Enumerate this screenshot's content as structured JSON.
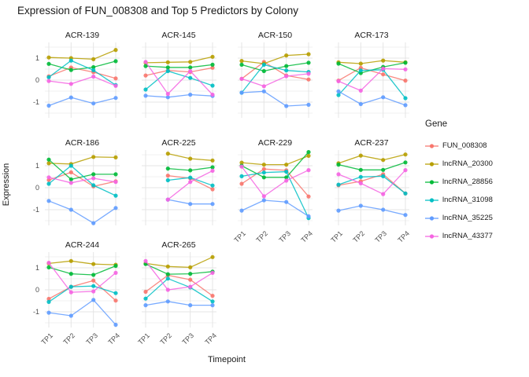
{
  "title": "Expression of FUN_008308 and Top 5 Predictors by Colony",
  "x_axis": {
    "title": "Timepoint",
    "ticks": [
      "TP1",
      "TP2",
      "TP3",
      "TP4"
    ]
  },
  "y_axis": {
    "title": "Expression",
    "ticks": [
      "1",
      "0",
      "-1"
    ],
    "tick_values": [
      1,
      0,
      -1
    ]
  },
  "legend": {
    "title": "Gene",
    "position": "right"
  },
  "colors": {
    "FUN_008308": "#F8766D",
    "lncRNA_20300": "#B79F00",
    "lncRNA_28856": "#00BA38",
    "lncRNA_31098": "#00BFC4",
    "lncRNA_35225": "#619CFF",
    "lncRNA_43377": "#F564E2"
  },
  "chart_data": {
    "type": "line",
    "x": [
      "TP1",
      "TP2",
      "TP3",
      "TP4"
    ],
    "ylim": [
      -1.7,
      1.7
    ],
    "grid": true,
    "legend_position": "right",
    "series_names": [
      "FUN_008308",
      "lncRNA_20300",
      "lncRNA_28856",
      "lncRNA_31098",
      "lncRNA_35225",
      "lncRNA_43377"
    ],
    "facets": [
      {
        "name": "ACR-139",
        "values": {
          "FUN_008308": [
            0.17,
            0.57,
            0.36,
            0.08
          ],
          "lncRNA_20300": [
            1.03,
            1.0,
            0.95,
            1.37
          ],
          "lncRNA_28856": [
            0.74,
            0.46,
            0.59,
            0.86
          ],
          "lncRNA_31098": [
            0.13,
            0.89,
            0.45,
            -0.23
          ],
          "lncRNA_35225": [
            -1.16,
            -0.79,
            -1.06,
            -0.81
          ],
          "lncRNA_43377": [
            -0.04,
            -0.17,
            0.16,
            -0.26
          ]
        }
      },
      {
        "name": "ACR-145",
        "values": {
          "FUN_008308": [
            0.21,
            0.44,
            0.37,
            0.56
          ],
          "lncRNA_20300": [
            0.79,
            0.81,
            0.83,
            1.06
          ],
          "lncRNA_28856": [
            0.64,
            0.58,
            0.58,
            0.7
          ],
          "lncRNA_31098": [
            -0.43,
            0.41,
            0.1,
            -0.25
          ],
          "lncRNA_35225": [
            -0.71,
            -0.78,
            -0.66,
            -0.72
          ],
          "lncRNA_43377": [
            0.83,
            -0.63,
            0.41,
            -0.66
          ]
        }
      },
      {
        "name": "ACR-150",
        "values": {
          "FUN_008308": [
            0.06,
            0.83,
            0.21,
            0.03
          ],
          "lncRNA_20300": [
            0.87,
            0.75,
            1.12,
            1.18
          ],
          "lncRNA_28856": [
            0.7,
            0.41,
            0.64,
            0.79
          ],
          "lncRNA_31098": [
            -0.57,
            0.7,
            0.44,
            0.37
          ],
          "lncRNA_35225": [
            -0.57,
            -0.51,
            -1.18,
            -1.12
          ],
          "lncRNA_43377": [
            0.06,
            -0.28,
            0.18,
            0.29
          ]
        }
      },
      {
        "name": "ACR-173",
        "values": {
          "FUN_008308": [
            -0.02,
            0.56,
            0.26,
            -0.02
          ],
          "lncRNA_20300": [
            0.81,
            0.75,
            0.89,
            0.81
          ],
          "lncRNA_28856": [
            0.75,
            0.32,
            0.6,
            0.79
          ],
          "lncRNA_31098": [
            -0.68,
            0.44,
            0.47,
            -0.82
          ],
          "lncRNA_35225": [
            -0.51,
            -1.09,
            -0.78,
            -1.14
          ],
          "lncRNA_43377": [
            -0.05,
            -0.48,
            0.52,
            0.49
          ]
        }
      },
      {
        "name": "ACR-186",
        "values": {
          "FUN_008308": [
            0.35,
            0.7,
            0.06,
            0.29
          ],
          "lncRNA_20300": [
            1.11,
            1.08,
            1.4,
            1.38
          ],
          "lncRNA_28856": [
            1.28,
            0.38,
            0.61,
            0.61
          ],
          "lncRNA_31098": [
            0.18,
            1.0,
            0.11,
            -0.36
          ],
          "lncRNA_35225": [
            -0.6,
            -1.0,
            -1.61,
            -0.92
          ],
          "lncRNA_43377": [
            0.47,
            0.22,
            0.43,
            0.26
          ]
        }
      },
      {
        "name": "ACR-225",
        "values": {
          "FUN_008308": [
            null,
            0.55,
            0.43,
            -0.07
          ],
          "lncRNA_20300": [
            null,
            1.55,
            1.32,
            1.24
          ],
          "lncRNA_28856": [
            null,
            0.87,
            0.79,
            0.93
          ],
          "lncRNA_31098": [
            null,
            0.34,
            0.46,
            0.1
          ],
          "lncRNA_35225": [
            null,
            -0.54,
            -0.74,
            -0.74
          ],
          "lncRNA_43377": [
            null,
            -0.54,
            0.26,
            0.77
          ]
        }
      },
      {
        "name": "ACR-229",
        "values": {
          "FUN_008308": [
            0.18,
            0.85,
            0.79,
            -0.4
          ],
          "lncRNA_20300": [
            1.14,
            1.05,
            1.05,
            1.45
          ],
          "lncRNA_28856": [
            1.0,
            0.47,
            0.47,
            1.62
          ],
          "lncRNA_31098": [
            0.52,
            0.69,
            0.73,
            -1.38
          ],
          "lncRNA_35225": [
            -1.04,
            -0.57,
            -0.65,
            -1.3
          ],
          "lncRNA_43377": [
            0.96,
            -0.39,
            0.32,
            0.8
          ]
        }
      },
      {
        "name": "ACR-237",
        "values": {
          "FUN_008308": [
            0.11,
            0.29,
            0.61,
            -0.26
          ],
          "lncRNA_20300": [
            1.11,
            1.46,
            1.26,
            1.51
          ],
          "lncRNA_28856": [
            1.05,
            0.81,
            0.81,
            1.15
          ],
          "lncRNA_31098": [
            0.14,
            0.49,
            0.52,
            -0.26
          ],
          "lncRNA_35225": [
            -1.04,
            -0.82,
            -1.0,
            -1.24
          ],
          "lncRNA_43377": [
            0.61,
            0.2,
            -0.29,
            0.8
          ]
        }
      },
      {
        "name": "ACR-244",
        "values": {
          "FUN_008308": [
            -0.41,
            0.14,
            0.42,
            -0.49
          ],
          "lncRNA_20300": [
            1.2,
            1.31,
            1.17,
            1.14
          ],
          "lncRNA_28856": [
            1.02,
            0.73,
            0.68,
            1.09
          ],
          "lncRNA_31098": [
            -0.55,
            0.14,
            0.17,
            -0.15
          ],
          "lncRNA_35225": [
            -1.04,
            -1.18,
            -0.46,
            -1.59
          ],
          "lncRNA_43377": [
            1.23,
            -0.11,
            -0.07,
            0.77
          ]
        }
      },
      {
        "name": "ACR-265",
        "values": {
          "FUN_008308": [
            -0.09,
            0.66,
            0.46,
            -0.27
          ],
          "lncRNA_20300": [
            1.2,
            1.06,
            1.02,
            1.49
          ],
          "lncRNA_28856": [
            1.17,
            0.71,
            0.73,
            0.83
          ],
          "lncRNA_31098": [
            -0.4,
            0.51,
            0.11,
            -0.53
          ],
          "lncRNA_35225": [
            -0.7,
            -0.53,
            -0.7,
            -0.7
          ],
          "lncRNA_43377": [
            1.31,
            0.0,
            0.14,
            0.77
          ]
        }
      }
    ]
  }
}
